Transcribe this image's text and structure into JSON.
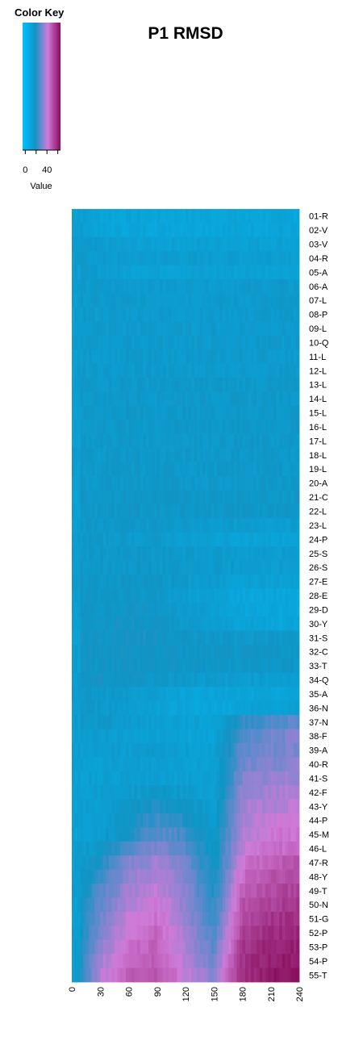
{
  "chart_data": {
    "type": "heatmap",
    "title": "P1 RMSD",
    "color_key": {
      "title": "Color Key",
      "label": "Value",
      "ticks": [
        "0",
        "40"
      ],
      "tick_values": [
        0,
        40
      ],
      "range": [
        -5,
        65
      ],
      "colors": [
        "#00c2ff",
        "#1094c4",
        "#d07ad8",
        "#880c5a"
      ]
    },
    "rows": [
      "01-R",
      "02-V",
      "03-V",
      "04-R",
      "05-A",
      "06-A",
      "07-L",
      "08-P",
      "09-L",
      "10-Q",
      "11-L",
      "12-L",
      "13-L",
      "14-L",
      "15-L",
      "16-L",
      "17-L",
      "18-L",
      "19-L",
      "20-A",
      "21-C",
      "22-L",
      "23-L",
      "24-P",
      "25-S",
      "26-S",
      "27-E",
      "28-E",
      "29-D",
      "30-Y",
      "31-S",
      "32-C",
      "33-T",
      "34-Q",
      "35-A",
      "36-N",
      "37-N",
      "38-F",
      "39-A",
      "40-R",
      "41-S",
      "42-F",
      "43-Y",
      "44-P",
      "45-M",
      "46-L",
      "47-R",
      "48-Y",
      "49-T",
      "50-N",
      "51-G",
      "52-P",
      "53-P",
      "54-P",
      "55-T"
    ],
    "x_ticks": [
      "0",
      "30",
      "60",
      "90",
      "120",
      "150",
      "180",
      "210",
      "240"
    ],
    "x_tick_values": [
      0,
      30,
      60,
      90,
      120,
      150,
      180,
      210,
      240
    ],
    "xlim": [
      0,
      240
    ],
    "columns": 80,
    "row_values_by_x": [
      [
        15,
        10,
        10,
        10,
        10,
        10,
        10,
        10,
        10
      ],
      [
        15,
        10,
        10,
        10,
        10,
        10,
        10,
        10,
        10
      ],
      [
        15,
        14,
        12,
        12,
        12,
        12,
        12,
        12,
        12
      ],
      [
        15,
        14,
        14,
        14,
        14,
        14,
        14,
        14,
        14
      ],
      [
        15,
        14,
        12,
        12,
        12,
        12,
        12,
        12,
        12
      ],
      [
        15,
        15,
        15,
        15,
        15,
        15,
        15,
        15,
        15
      ],
      [
        15,
        15,
        15,
        15,
        15,
        15,
        15,
        15,
        15
      ],
      [
        15,
        15,
        15,
        15,
        15,
        15,
        15,
        15,
        15
      ],
      [
        15,
        15,
        15,
        15,
        15,
        15,
        15,
        15,
        15
      ],
      [
        15,
        15,
        15,
        15,
        15,
        15,
        15,
        15,
        15
      ],
      [
        15,
        15,
        15,
        15,
        15,
        15,
        15,
        15,
        15
      ],
      [
        15,
        15,
        15,
        15,
        15,
        15,
        15,
        15,
        15
      ],
      [
        16,
        16,
        16,
        16,
        16,
        16,
        16,
        16,
        16
      ],
      [
        16,
        16,
        16,
        16,
        16,
        16,
        16,
        16,
        16
      ],
      [
        16,
        16,
        16,
        16,
        16,
        16,
        16,
        16,
        16
      ],
      [
        16,
        16,
        16,
        16,
        16,
        16,
        16,
        16,
        16
      ],
      [
        16,
        16,
        16,
        16,
        16,
        16,
        16,
        16,
        16
      ],
      [
        16,
        16,
        16,
        16,
        16,
        16,
        16,
        16,
        16
      ],
      [
        16,
        16,
        16,
        16,
        16,
        16,
        16,
        16,
        16
      ],
      [
        16,
        16,
        16,
        16,
        16,
        16,
        16,
        16,
        16
      ],
      [
        17,
        17,
        17,
        17,
        17,
        17,
        17,
        17,
        17
      ],
      [
        17,
        17,
        17,
        17,
        17,
        17,
        17,
        17,
        17
      ],
      [
        16,
        16,
        16,
        16,
        15,
        15,
        14,
        14,
        14
      ],
      [
        16,
        16,
        15,
        15,
        13,
        12,
        11,
        11,
        11
      ],
      [
        16,
        16,
        16,
        16,
        15,
        15,
        14,
        14,
        14
      ],
      [
        16,
        16,
        16,
        16,
        15,
        15,
        14,
        14,
        14
      ],
      [
        17,
        17,
        17,
        17,
        15,
        14,
        12,
        12,
        12
      ],
      [
        17,
        17,
        17,
        17,
        13,
        12,
        9,
        9,
        9
      ],
      [
        17,
        17,
        18,
        18,
        14,
        13,
        10,
        9,
        9
      ],
      [
        18,
        18,
        18,
        18,
        15,
        13,
        11,
        10,
        10
      ],
      [
        18,
        18,
        19,
        19,
        17,
        16,
        16,
        16,
        16
      ],
      [
        18,
        18,
        18,
        18,
        17,
        17,
        17,
        17,
        17
      ],
      [
        18,
        18,
        18,
        18,
        17,
        17,
        17,
        17,
        17
      ],
      [
        18,
        18,
        18,
        17,
        16,
        14,
        14,
        14,
        14
      ],
      [
        16,
        16,
        15,
        13,
        11,
        10,
        10,
        10,
        10
      ],
      [
        16,
        16,
        14,
        12,
        10,
        9,
        11,
        12,
        12
      ],
      [
        16,
        16,
        15,
        13,
        12,
        11,
        22,
        26,
        28
      ],
      [
        14,
        14,
        13,
        12,
        11,
        10,
        26,
        30,
        32
      ],
      [
        14,
        14,
        14,
        14,
        13,
        12,
        28,
        30,
        32
      ],
      [
        13,
        13,
        13,
        13,
        13,
        12,
        30,
        32,
        33
      ],
      [
        13,
        13,
        13,
        13,
        13,
        12,
        32,
        34,
        35
      ],
      [
        13,
        13,
        15,
        17,
        15,
        12,
        34,
        36,
        38
      ],
      [
        13,
        13,
        16,
        20,
        18,
        13,
        36,
        38,
        40
      ],
      [
        13,
        13,
        17,
        24,
        20,
        14,
        37,
        40,
        42
      ],
      [
        13,
        14,
        20,
        28,
        24,
        15,
        38,
        42,
        44
      ],
      [
        13,
        16,
        26,
        32,
        27,
        16,
        40,
        44,
        46
      ],
      [
        13,
        20,
        32,
        36,
        30,
        17,
        43,
        47,
        50
      ],
      [
        13,
        24,
        34,
        38,
        32,
        18,
        45,
        50,
        52
      ],
      [
        13,
        26,
        36,
        40,
        33,
        20,
        48,
        52,
        54
      ],
      [
        12,
        28,
        38,
        42,
        34,
        22,
        50,
        54,
        56
      ],
      [
        12,
        30,
        40,
        44,
        35,
        23,
        52,
        56,
        58
      ],
      [
        12,
        32,
        42,
        46,
        36,
        25,
        54,
        58,
        60
      ],
      [
        12,
        34,
        44,
        47,
        37,
        27,
        56,
        60,
        61
      ],
      [
        12,
        36,
        46,
        48,
        38,
        30,
        57,
        61,
        62
      ],
      [
        12,
        38,
        48,
        50,
        40,
        33,
        58,
        62,
        63
      ]
    ]
  }
}
